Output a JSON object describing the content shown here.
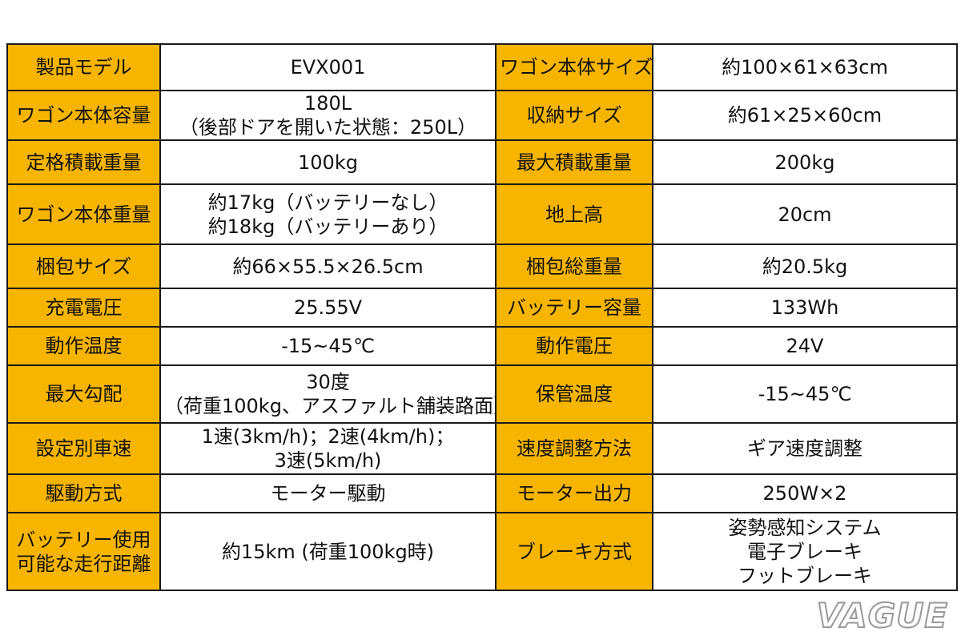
{
  "rows": [
    {
      "l1": "製品モデル",
      "v1": [
        "EVX001"
      ],
      "l2": "ワゴン本体サイズ",
      "v2": [
        "約100×61×63cm"
      ]
    },
    {
      "l1": "ワゴン本体容量",
      "v1": [
        "180L",
        "（後部ドアを開いた状態：250L）"
      ],
      "l2": "収納サイズ",
      "v2": [
        "約61×25×60cm"
      ]
    },
    {
      "l1": "定格積載重量",
      "v1": [
        "100kg"
      ],
      "l2": "最大積載重量",
      "v2": [
        "200kg"
      ]
    },
    {
      "l1": "ワゴン本体重量",
      "v1": [
        "約17kg（バッテリーなし）",
        "約18kg（バッテリーあり）"
      ],
      "l2": "地上高",
      "v2": [
        "20cm"
      ]
    },
    {
      "l1": "梱包サイズ",
      "v1": [
        "約66×55.5×26.5cm"
      ],
      "l2": "梱包総重量",
      "v2": [
        "約20.5kg"
      ]
    },
    {
      "l1": "充電電圧",
      "v1": [
        "25.55V"
      ],
      "l2": "バッテリー容量",
      "v2": [
        "133Wh"
      ]
    },
    {
      "l1": "動作温度",
      "v1": [
        "-15~45℃"
      ],
      "l2": "動作電圧",
      "v2": [
        "24V"
      ]
    },
    {
      "l1": "最大勾配",
      "v1": [
        "30度",
        "（荷重100kg、アスファルト舗装路面）"
      ],
      "l2": "保管温度",
      "v2": [
        "-15~45℃"
      ]
    },
    {
      "l1": "設定別車速",
      "v1": [
        "1速(3km/h)；2速(4km/h)；",
        "3速(5km/h)"
      ],
      "l2": "速度調整方法",
      "v2": [
        "ギア速度調整"
      ]
    },
    {
      "l1": "駆動方式",
      "v1": [
        "モーター駆動"
      ],
      "l2": "モーター出力",
      "v2": [
        "250W×2"
      ]
    },
    {
      "l1": "バッテリー使用\n可能な走行距離",
      "v1": [
        "約15km (荷重100kg時)"
      ],
      "l2": "ブレーキ方式",
      "v2": [
        "姿勢感知システム",
        "電子ブレーキ",
        "フットブレーキ"
      ]
    }
  ],
  "watermark": "VAGUE",
  "colors": {
    "label_bg": "#f7b500",
    "value_bg": "#ffffff",
    "border": "#1a1a1a"
  }
}
